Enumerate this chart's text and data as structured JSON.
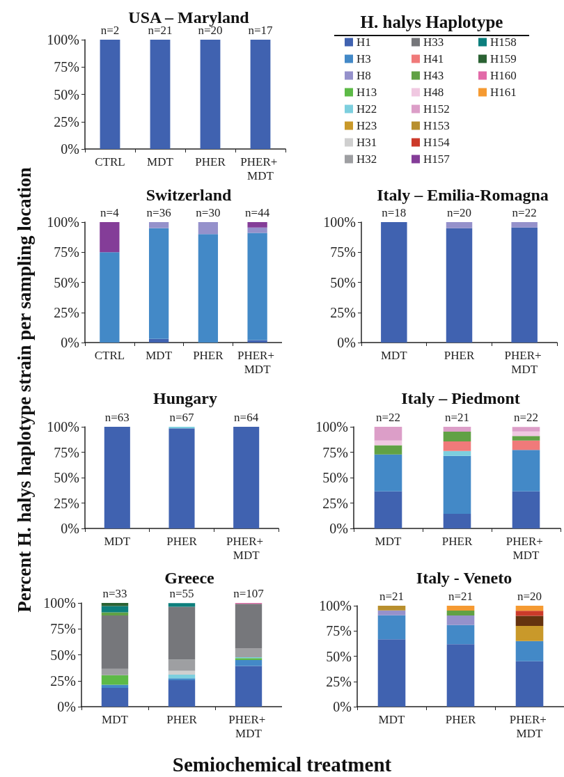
{
  "chart_data": [
    {
      "type": "bar",
      "stacked": true,
      "title": "USA – Maryland",
      "ylabel": "Percent H. halys haplotype strain per sampling location",
      "xlabel": "Semiochemical treatment",
      "legend": "right",
      "legend_title": "H. halys Haplotype",
      "categories": [
        "CTRL",
        "MDT",
        "PHER",
        "PHER+ MDT"
      ],
      "ylim": [
        0,
        100
      ],
      "yticks": [
        {
          "value": 0,
          "label": "0%"
        },
        {
          "value": 25,
          "label": "25%"
        },
        {
          "value": 50,
          "label": "50%"
        },
        {
          "value": 75,
          "label": "75%"
        },
        {
          "value": 100,
          "label": "100%"
        }
      ],
      "annotations": [
        {
          "text": "n=2",
          "x": "CTRL",
          "y": 100
        },
        {
          "text": "n=21",
          "x": "MDT",
          "y": 100
        },
        {
          "text": "n=20",
          "x": "PHER",
          "y": 100
        },
        {
          "text": "n=17",
          "x": "PHER+ MDT",
          "y": 100
        }
      ],
      "series": [
        {
          "name": "H1",
          "color": "#4062b0",
          "values": [
            100,
            100,
            100,
            100
          ]
        },
        {
          "name": "H3",
          "color": "#4389c7",
          "values": [
            null,
            null,
            null,
            null
          ]
        },
        {
          "name": "H8",
          "color": "#9591cb",
          "values": [
            null,
            null,
            null,
            null
          ]
        },
        {
          "name": "H13",
          "color": "#5dba47",
          "values": [
            null,
            null,
            null,
            null
          ]
        },
        {
          "name": "H22",
          "color": "#7dcfde",
          "values": [
            null,
            null,
            null,
            null
          ]
        },
        {
          "name": "H23",
          "color": "#c9992a",
          "values": [
            null,
            null,
            null,
            null
          ]
        },
        {
          "name": "H31",
          "color": "#cfcfcf",
          "values": [
            null,
            null,
            null,
            null
          ]
        },
        {
          "name": "H32",
          "color": "#9e9fa2",
          "values": [
            null,
            null,
            null,
            null
          ]
        },
        {
          "name": "H33",
          "color": "#76777b",
          "values": [
            null,
            null,
            null,
            null
          ]
        },
        {
          "name": "H41",
          "color": "#f07a7a",
          "values": [
            null,
            null,
            null,
            null
          ]
        },
        {
          "name": "H43",
          "color": "#61a145",
          "values": [
            null,
            null,
            null,
            null
          ]
        },
        {
          "name": "H48",
          "color": "#f0c8e1",
          "values": [
            null,
            null,
            null,
            null
          ]
        },
        {
          "name": "H152",
          "color": "#dc9ec8",
          "values": [
            null,
            null,
            null,
            null
          ]
        },
        {
          "name": "H153",
          "color": "#b88f2e",
          "values": [
            null,
            null,
            null,
            null
          ]
        },
        {
          "name": "H154",
          "color": "#cc3a2a",
          "values": [
            null,
            null,
            null,
            null
          ]
        },
        {
          "name": "H157",
          "color": "#843d98",
          "values": [
            null,
            null,
            null,
            null
          ]
        },
        {
          "name": "H158",
          "color": "#0c7f7d",
          "values": [
            null,
            null,
            null,
            null
          ]
        },
        {
          "name": "H159",
          "color": "#2b6233",
          "values": [
            null,
            null,
            null,
            null
          ]
        },
        {
          "name": "H160",
          "color": "#e26aa8",
          "values": [
            null,
            null,
            null,
            null
          ]
        },
        {
          "name": "H161",
          "color": "#f59a32",
          "values": [
            null,
            null,
            null,
            null
          ]
        }
      ]
    },
    {
      "type": "bar",
      "stacked": true,
      "title": "Switzerland",
      "categories": [
        "CTRL",
        "MDT",
        "PHER",
        "PHER+ MDT"
      ],
      "ylim": [
        0,
        100
      ],
      "yticks": [
        {
          "value": 0,
          "label": "0%"
        },
        {
          "value": 25,
          "label": "25%"
        },
        {
          "value": 50,
          "label": "50%"
        },
        {
          "value": 75,
          "label": "75%"
        },
        {
          "value": 100,
          "label": "100%"
        }
      ],
      "annotations": [
        {
          "text": "n=4",
          "x": "CTRL",
          "y": 100
        },
        {
          "text": "n=36",
          "x": "MDT",
          "y": 100
        },
        {
          "text": "n=30",
          "x": "PHER",
          "y": 100
        },
        {
          "text": "n=44",
          "x": "PHER+ MDT",
          "y": 100
        }
      ],
      "series": [
        {
          "color": "#4062b0",
          "values": [
            null,
            3,
            null,
            2
          ]
        },
        {
          "color": "#4389c7",
          "values": [
            75,
            92,
            90,
            89
          ]
        },
        {
          "color": "#9591cb",
          "values": [
            null,
            5,
            10,
            4.5
          ]
        },
        {
          "color": "#843d98",
          "values": [
            25,
            null,
            null,
            4.5
          ]
        }
      ]
    },
    {
      "type": "bar",
      "stacked": true,
      "title": "Italy – Emilia-Romagna",
      "categories": [
        "MDT",
        "PHER",
        "PHER+ MDT"
      ],
      "ylim": [
        0,
        100
      ],
      "yticks": [
        {
          "value": 0,
          "label": "0%"
        },
        {
          "value": 25,
          "label": "25%"
        },
        {
          "value": 50,
          "label": "50%"
        },
        {
          "value": 75,
          "label": "75%"
        },
        {
          "value": 100,
          "label": "100%"
        }
      ],
      "annotations": [
        {
          "text": "n=18",
          "x": "MDT",
          "y": 100
        },
        {
          "text": "n=20",
          "x": "PHER",
          "y": 100
        },
        {
          "text": "n=22",
          "x": "PHER+ MDT",
          "y": 100
        }
      ],
      "series": [
        {
          "color": "#4062b0",
          "values": [
            100,
            95,
            95.5
          ]
        },
        {
          "color": "#9591cb",
          "values": [
            null,
            5,
            4.5
          ]
        }
      ]
    },
    {
      "type": "bar",
      "stacked": true,
      "title": "Hungary",
      "categories": [
        "MDT",
        "PHER",
        "PHER+ MDT"
      ],
      "ylim": [
        0,
        100
      ],
      "yticks": [
        {
          "value": 0,
          "label": "0%"
        },
        {
          "value": 25,
          "label": "25%"
        },
        {
          "value": 50,
          "label": "50%"
        },
        {
          "value": 75,
          "label": "75%"
        },
        {
          "value": 100,
          "label": "100%"
        }
      ],
      "annotations": [
        {
          "text": "n=63",
          "x": "MDT",
          "y": 100
        },
        {
          "text": "n=67",
          "x": "PHER",
          "y": 100
        },
        {
          "text": "n=64",
          "x": "PHER+ MDT",
          "y": 100
        }
      ],
      "series": [
        {
          "color": "#4062b0",
          "values": [
            100,
            98.5,
            100
          ]
        },
        {
          "color": "#7dcfde",
          "values": [
            null,
            1.5,
            null
          ]
        }
      ]
    },
    {
      "type": "bar",
      "stacked": true,
      "title": "Italy – Piedmont",
      "categories": [
        "MDT",
        "PHER",
        "PHER+ MDT"
      ],
      "ylim": [
        0,
        100
      ],
      "yticks": [
        {
          "value": 0,
          "label": "0%"
        },
        {
          "value": 25,
          "label": "25%"
        },
        {
          "value": 50,
          "label": "50%"
        },
        {
          "value": 75,
          "label": "75%"
        },
        {
          "value": 100,
          "label": "100%"
        }
      ],
      "annotations": [
        {
          "text": "n=22",
          "x": "MDT",
          "y": 100
        },
        {
          "text": "n=21",
          "x": "PHER",
          "y": 100
        },
        {
          "text": "n=22",
          "x": "PHER+ MDT",
          "y": 100
        }
      ],
      "series": [
        {
          "color": "#4062b0",
          "values": [
            36.4,
            14.3,
            36.4
          ]
        },
        {
          "color": "#4389c7",
          "values": [
            36.4,
            57.1,
            40.9
          ]
        },
        {
          "color": "#7dcfde",
          "values": [
            null,
            4.8,
            null
          ]
        },
        {
          "color": "#f07a7a",
          "values": [
            null,
            9.5,
            9.1
          ]
        },
        {
          "color": "#61a145",
          "values": [
            9.1,
            9.5,
            4.5
          ]
        },
        {
          "color": "#f0c8e1",
          "values": [
            4.5,
            null,
            4.5
          ]
        },
        {
          "color": "#dc9ec8",
          "values": [
            13.6,
            4.8,
            4.5
          ]
        }
      ]
    },
    {
      "type": "bar",
      "stacked": true,
      "title": "Greece",
      "categories": [
        "MDT",
        "PHER",
        "PHER+ MDT"
      ],
      "ylim": [
        0,
        100
      ],
      "yticks": [
        {
          "value": 0,
          "label": "0%"
        },
        {
          "value": 25,
          "label": "25%"
        },
        {
          "value": 50,
          "label": "50%"
        },
        {
          "value": 75,
          "label": "75%"
        },
        {
          "value": 100,
          "label": "100%"
        }
      ],
      "annotations": [
        {
          "text": "n=33",
          "x": "MDT",
          "y": 100
        },
        {
          "text": "n=55",
          "x": "PHER",
          "y": 100
        },
        {
          "text": "n=107",
          "x": "PHER+ MDT",
          "y": 100
        }
      ],
      "series": [
        {
          "color": "#4062b0",
          "values": [
            18.2,
            25.5,
            39.3
          ]
        },
        {
          "color": "#4389c7",
          "values": [
            3,
            1.8,
            5.6
          ]
        },
        {
          "color": "#5dba47",
          "values": [
            9.1,
            null,
            1.9
          ]
        },
        {
          "color": "#7dcfde",
          "values": [
            null,
            3.6,
            0.9
          ]
        },
        {
          "color": "#cfcfcf",
          "values": [
            null,
            3.6,
            null
          ]
        },
        {
          "color": "#9e9fa2",
          "values": [
            6.1,
            10.9,
            8.4
          ]
        },
        {
          "color": "#76777b",
          "values": [
            51.5,
            50.9,
            43
          ]
        },
        {
          "color": "#61a145",
          "values": [
            3,
            null,
            null
          ]
        },
        {
          "color": "#0c7f7d",
          "values": [
            6.1,
            3.6,
            null
          ]
        },
        {
          "color": "#2b6233",
          "values": [
            3,
            null,
            null
          ]
        },
        {
          "color": "#e26aa8",
          "values": [
            null,
            null,
            0.9
          ]
        }
      ]
    },
    {
      "type": "bar",
      "stacked": true,
      "title": "Italy - Veneto",
      "categories": [
        "MDT",
        "PHER",
        "PHER+ MDT"
      ],
      "ylim": [
        0,
        100
      ],
      "yticks": [
        {
          "value": 0,
          "label": "0%"
        },
        {
          "value": 25,
          "label": "25%"
        },
        {
          "value": 50,
          "label": "50%"
        },
        {
          "value": 75,
          "label": "75%"
        },
        {
          "value": 100,
          "label": "100%"
        }
      ],
      "annotations": [
        {
          "text": "n=21",
          "x": "MDT",
          "y": 100
        },
        {
          "text": "n=21",
          "x": "PHER",
          "y": 100
        },
        {
          "text": "n=20",
          "x": "PHER+ MDT",
          "y": 100
        }
      ],
      "series": [
        {
          "color": "#4062b0",
          "values": [
            66.7,
            61.9,
            45
          ]
        },
        {
          "color": "#4389c7",
          "values": [
            23.8,
            19,
            20
          ]
        },
        {
          "color": "#9591cb",
          "values": [
            4.8,
            9.5,
            null
          ]
        },
        {
          "color": "#61a145",
          "values": [
            null,
            4.8,
            null
          ]
        },
        {
          "color": "#c9992a",
          "values": [
            null,
            null,
            15
          ]
        },
        {
          "color": "#65330f",
          "values": [
            null,
            null,
            10
          ]
        },
        {
          "color": "#cc3a2a",
          "values": [
            null,
            null,
            5
          ]
        },
        {
          "color": "#b88f2e",
          "values": [
            4.8,
            null,
            null
          ]
        },
        {
          "color": "#f59a32",
          "values": [
            null,
            4.8,
            5
          ]
        }
      ]
    }
  ]
}
